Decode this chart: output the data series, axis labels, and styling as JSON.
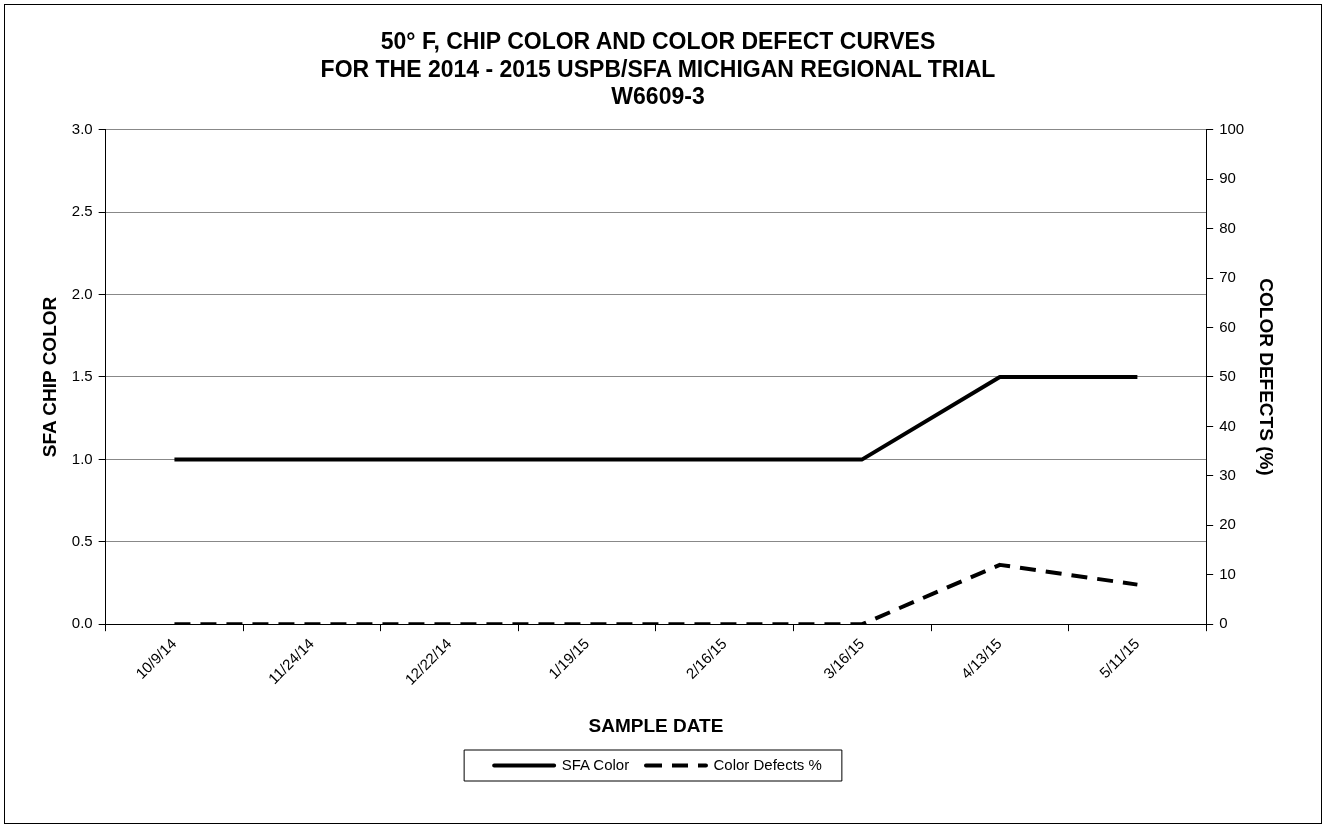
{
  "chart_data": {
    "type": "line",
    "title": "50° F, CHIP COLOR AND COLOR DEFECT CURVES\nFOR THE 2014 - 2015 USPB/SFA MICHIGAN REGIONAL TRIAL\nW6609-3",
    "xlabel": "SAMPLE DATE",
    "ylabel": "SFA CHIP COLOR",
    "y2label": "COLOR DEFECTS (%)",
    "categories": [
      "10/9/14",
      "11/24/14",
      "12/22/14",
      "1/19/15",
      "2/16/15",
      "3/16/15",
      "4/13/15",
      "5/11/15"
    ],
    "series": [
      {
        "name": "SFA Color",
        "color": "#000000",
        "values": [
          1.0,
          1.0,
          1.0,
          1.0,
          1.0,
          1.0,
          1.5,
          1.5
        ],
        "line_style": "solid"
      },
      {
        "name": "Color Defects %",
        "color": "#000000",
        "values": [
          0,
          0,
          0,
          0,
          0,
          0,
          12,
          8
        ],
        "axis": "y2",
        "line_style": "dashed"
      }
    ],
    "ylim": [
      0,
      3
    ],
    "yticks": [
      {
        "value": 0,
        "label": "0.0"
      },
      {
        "value": 0.5,
        "label": "0.5"
      },
      {
        "value": 1,
        "label": "1.0"
      },
      {
        "value": 1.5,
        "label": "1.5"
      },
      {
        "value": 2,
        "label": "2.0"
      },
      {
        "value": 2.5,
        "label": "2.5"
      },
      {
        "value": 3,
        "label": "3.0"
      }
    ],
    "y2lim": [
      0,
      100
    ],
    "y2ticks": [
      0,
      10,
      20,
      30,
      40,
      50,
      60,
      70,
      80,
      90,
      100
    ],
    "grid": "y",
    "legend": "bottom",
    "marker": "none"
  }
}
